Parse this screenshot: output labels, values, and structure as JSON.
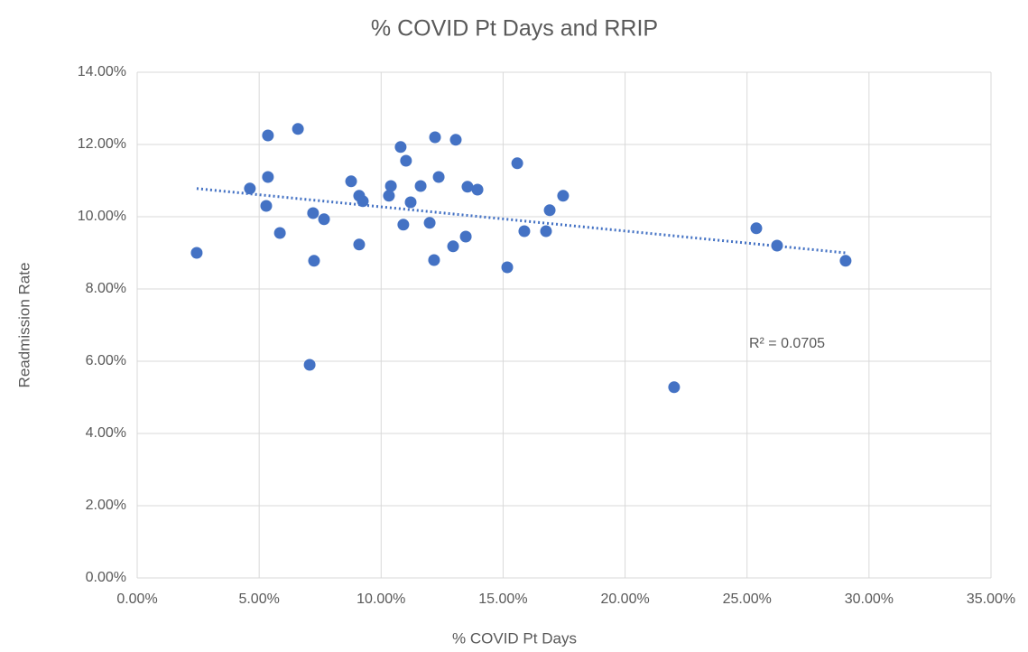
{
  "chart_data": {
    "type": "scatter",
    "title": "% COVID Pt Days and RRIP",
    "x_label": "% COVID Pt Days",
    "y_label": "Readmission Rate",
    "series": [
      {
        "name": "Readmission Rate",
        "color": "#4472c4",
        "x": [
          2.44,
          4.62,
          5.36,
          5.36,
          5.29,
          5.85,
          6.59,
          7.21,
          7.66,
          7.25,
          7.07,
          8.77,
          9.1,
          9.25,
          9.1,
          10.32,
          10.4,
          10.8,
          11.02,
          11.21,
          10.91,
          11.62,
          11.99,
          12.21,
          12.36,
          12.17,
          13.06,
          12.95,
          13.47,
          13.54,
          13.95,
          15.17,
          15.58,
          15.87,
          16.91,
          16.76,
          17.46,
          25.38,
          26.23,
          29.04,
          22.01
        ],
        "values": [
          9.0,
          10.78,
          12.25,
          11.1,
          10.3,
          9.55,
          12.43,
          10.1,
          9.93,
          8.78,
          5.9,
          10.98,
          10.58,
          10.43,
          9.23,
          10.58,
          10.85,
          11.93,
          11.55,
          10.4,
          9.78,
          10.85,
          9.83,
          12.2,
          11.1,
          8.8,
          12.13,
          9.18,
          9.45,
          10.83,
          10.75,
          8.6,
          11.48,
          9.6,
          10.18,
          9.6,
          10.58,
          9.68,
          9.2,
          8.78,
          5.28
        ]
      }
    ],
    "trendline": {
      "color": "#4472c4",
      "x": [
        2.44,
        29.04
      ],
      "values": [
        10.78,
        9.0
      ]
    },
    "annotation": "R² = 0.0705",
    "xlim": [
      0,
      35
    ],
    "ylim": [
      0,
      14
    ],
    "xticks": [
      {
        "value": 0,
        "label": "0.00%"
      },
      {
        "value": 5,
        "label": "5.00%"
      },
      {
        "value": 10,
        "label": "10.00%"
      },
      {
        "value": 15,
        "label": "15.00%"
      },
      {
        "value": 20,
        "label": "20.00%"
      },
      {
        "value": 25,
        "label": "25.00%"
      },
      {
        "value": 30,
        "label": "30.00%"
      },
      {
        "value": 35,
        "label": "35.00%"
      }
    ],
    "yticks": [
      {
        "value": 0,
        "label": "0.00%"
      },
      {
        "value": 2,
        "label": "2.00%"
      },
      {
        "value": 4,
        "label": "4.00%"
      },
      {
        "value": 6,
        "label": "6.00%"
      },
      {
        "value": 8,
        "label": "8.00%"
      },
      {
        "value": 10,
        "label": "10.00%"
      },
      {
        "value": 12,
        "label": "12.00%"
      },
      {
        "value": 14,
        "label": "14.00%"
      }
    ],
    "grid": true
  }
}
